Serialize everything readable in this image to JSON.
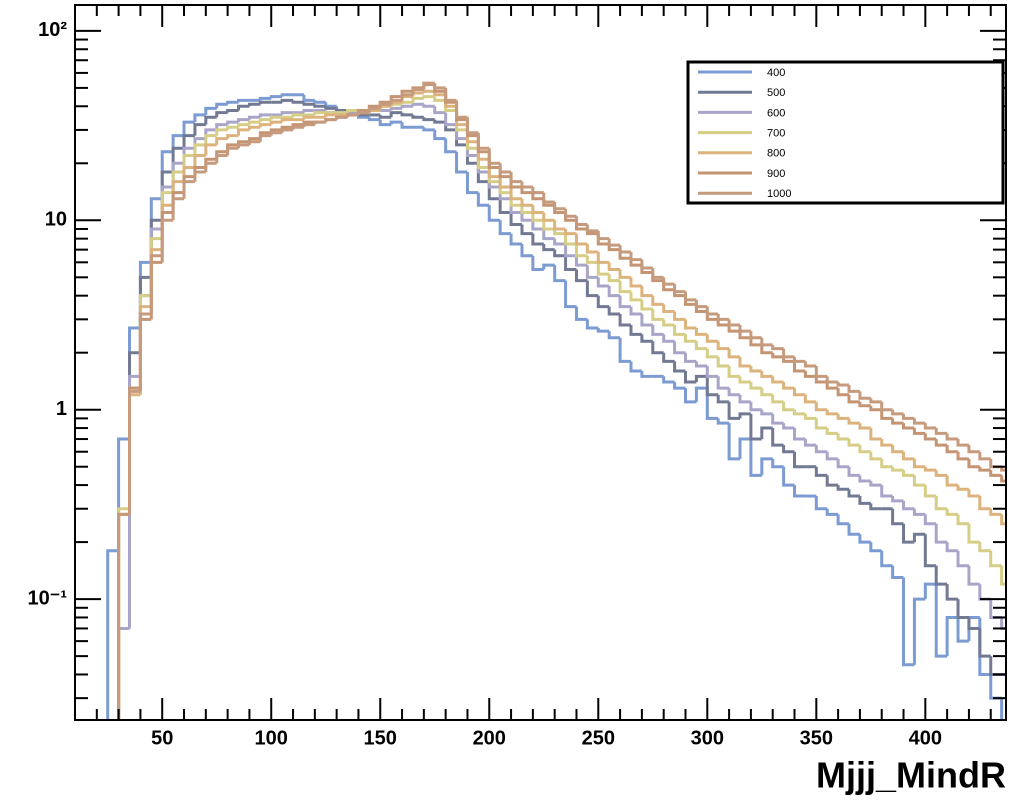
{
  "chart_data": {
    "type": "histogram",
    "log_y": true,
    "xlabel": "Mjjj_MindR",
    "bins": [
      10,
      15,
      20,
      25,
      30,
      35,
      40,
      45,
      50,
      55,
      60,
      65,
      70,
      75,
      80,
      85,
      90,
      95,
      100,
      105,
      110,
      115,
      120,
      125,
      130,
      135,
      140,
      145,
      150,
      155,
      160,
      165,
      170,
      175,
      180,
      185,
      190,
      195,
      200,
      205,
      210,
      215,
      220,
      225,
      230,
      235,
      240,
      245,
      250,
      255,
      260,
      265,
      270,
      275,
      280,
      285,
      290,
      295,
      300,
      305,
      310,
      315,
      320,
      325,
      330,
      335,
      340,
      345,
      350,
      355,
      360,
      365,
      370,
      375,
      380,
      385,
      390,
      395,
      400,
      405,
      410,
      415,
      420,
      425,
      430,
      435,
      440
    ],
    "xlim": [
      10,
      437
    ],
    "xticks": [
      50,
      100,
      150,
      200,
      250,
      300,
      350,
      400
    ],
    "xminorticks": [
      20,
      30,
      40,
      60,
      70,
      80,
      90,
      110,
      120,
      130,
      140,
      160,
      170,
      180,
      190,
      210,
      220,
      230,
      240,
      260,
      270,
      280,
      290,
      310,
      320,
      330,
      340,
      360,
      370,
      380,
      390,
      410,
      420,
      430
    ],
    "ylim": [
      0.023,
      137
    ],
    "yticks": [
      {
        "value": 0.1,
        "label": "10⁻¹"
      },
      1,
      10,
      {
        "value": 100,
        "label": "10²"
      }
    ],
    "yminorticks": [
      0.03,
      0.04,
      0.05,
      0.06,
      0.07,
      0.08,
      0.09,
      0.2,
      0.3,
      0.4,
      0.5,
      0.6,
      0.7,
      0.8,
      0.9,
      2,
      3,
      4,
      5,
      6,
      7,
      8,
      9,
      20,
      30,
      40,
      50,
      60,
      70,
      80,
      90
    ],
    "legend": "top-right",
    "series": [
      {
        "name": "400",
        "color": "#7b9bd2",
        "values": [
          0,
          0,
          0,
          0.18,
          0.7,
          2.7,
          6,
          13,
          23,
          28,
          33,
          36,
          39,
          41,
          42,
          43,
          43,
          44,
          45,
          46,
          46,
          43,
          42,
          40,
          38,
          36,
          35,
          34,
          32,
          33,
          31,
          31,
          30,
          27,
          23,
          18,
          14,
          12,
          10,
          8.5,
          7.5,
          6.5,
          5.5,
          5.8,
          4.8,
          3.5,
          3.0,
          2.7,
          2.6,
          2.4,
          1.8,
          1.6,
          1.5,
          1.5,
          1.4,
          1.3,
          1.1,
          1.3,
          0.9,
          0.85,
          0.55,
          0.7,
          0.45,
          0.55,
          0.5,
          0.4,
          0.35,
          0.35,
          0.3,
          0.28,
          0.25,
          0.22,
          0.2,
          0.18,
          0.15,
          0.13,
          0.045,
          0.1,
          0.12,
          0.05,
          0.08,
          0.06,
          0.08,
          0.04,
          0.03,
          0.02
        ]
      },
      {
        "name": "500",
        "color": "#727a93",
        "values": [
          0,
          0,
          0,
          0,
          0.07,
          2.0,
          5,
          10,
          18,
          24,
          28,
          32,
          35,
          37,
          38,
          40,
          41,
          42,
          42,
          43,
          42,
          41,
          40,
          39,
          38,
          37,
          36,
          36,
          35,
          37,
          36,
          35,
          34,
          33,
          30,
          25,
          20,
          16,
          13,
          11,
          9.5,
          8.5,
          7.5,
          7,
          6.5,
          5.5,
          4.8,
          4,
          3.5,
          3.2,
          2.8,
          2.5,
          2.3,
          2.0,
          1.8,
          1.6,
          1.4,
          1.5,
          1.2,
          1.1,
          0.9,
          0.95,
          0.7,
          0.8,
          0.65,
          0.6,
          0.5,
          0.5,
          0.45,
          0.4,
          0.38,
          0.35,
          0.32,
          0.3,
          0.3,
          0.25,
          0.2,
          0.22,
          0.15,
          0.12,
          0.1,
          0.08,
          0.07,
          0.05,
          0.04,
          0.04
        ]
      },
      {
        "name": "600",
        "color": "#a9a5c9",
        "values": [
          0,
          0,
          0,
          0,
          0.07,
          1.5,
          4,
          9,
          15,
          20,
          24,
          27,
          30,
          32,
          33,
          34,
          35,
          36,
          36,
          37,
          37,
          38,
          38,
          37,
          37,
          37,
          37,
          38,
          38,
          39,
          40,
          41,
          40,
          37,
          32,
          27,
          22,
          18,
          15,
          13,
          11,
          10,
          9,
          8,
          7.5,
          6.5,
          5.8,
          5,
          4.5,
          4,
          3.5,
          3.2,
          2.8,
          2.5,
          2.3,
          2.0,
          1.8,
          1.7,
          1.5,
          1.3,
          1.2,
          1.1,
          1.0,
          0.95,
          0.85,
          0.8,
          0.7,
          0.65,
          0.6,
          0.55,
          0.5,
          0.45,
          0.42,
          0.4,
          0.35,
          0.33,
          0.3,
          0.28,
          0.25,
          0.2,
          0.18,
          0.15,
          0.12,
          0.1,
          0.08,
          0.07
        ]
      },
      {
        "name": "700",
        "color": "#d6cd86",
        "values": [
          0,
          0,
          0,
          0,
          0.3,
          1.3,
          4,
          8,
          14,
          18,
          22,
          25,
          28,
          30,
          31,
          32,
          33,
          34,
          35,
          35,
          36,
          36,
          37,
          37,
          37,
          38,
          38,
          39,
          40,
          41,
          42,
          44,
          45,
          43,
          38,
          30,
          24,
          19,
          16,
          14,
          12,
          11,
          10,
          9,
          8.5,
          7.5,
          6.5,
          6,
          5.2,
          4.8,
          4.2,
          3.8,
          3.4,
          3,
          2.8,
          2.5,
          2.3,
          2.1,
          1.9,
          1.7,
          1.5,
          1.4,
          1.3,
          1.2,
          1.1,
          1.0,
          0.95,
          0.9,
          0.8,
          0.75,
          0.7,
          0.65,
          0.6,
          0.55,
          0.5,
          0.48,
          0.45,
          0.4,
          0.35,
          0.3,
          0.28,
          0.25,
          0.2,
          0.18,
          0.15,
          0.12
        ]
      },
      {
        "name": "800",
        "color": "#ddb37d",
        "values": [
          0,
          0,
          0,
          0,
          0.28,
          1.2,
          3.5,
          7,
          12,
          16,
          19,
          22,
          25,
          27,
          28,
          30,
          31,
          32,
          33,
          34,
          34,
          35,
          35,
          36,
          36,
          36,
          37,
          38,
          40,
          42,
          45,
          47,
          48,
          46,
          40,
          32,
          26,
          21,
          17,
          15,
          13,
          12,
          11,
          10,
          9,
          8.5,
          7.5,
          6.8,
          6,
          5.5,
          5,
          4.5,
          4,
          3.6,
          3.3,
          3,
          2.7,
          2.5,
          2.3,
          2.1,
          1.9,
          1.7,
          1.6,
          1.5,
          1.4,
          1.3,
          1.2,
          1.1,
          1.0,
          0.95,
          0.9,
          0.85,
          0.8,
          0.7,
          0.65,
          0.6,
          0.55,
          0.5,
          0.48,
          0.45,
          0.4,
          0.38,
          0.35,
          0.3,
          0.28,
          0.25
        ]
      },
      {
        "name": "900",
        "color": "#c49473",
        "values": [
          0,
          0,
          0,
          0,
          0.28,
          1.3,
          3.0,
          6,
          11,
          14,
          17,
          19,
          21,
          23,
          25,
          26,
          27,
          29,
          30,
          31,
          32,
          33,
          33,
          34,
          35,
          36,
          38,
          40,
          42,
          45,
          48,
          50,
          52,
          48,
          42,
          34,
          28,
          23,
          19,
          17,
          15,
          14,
          13,
          12,
          11,
          10,
          9,
          8.5,
          7.5,
          7,
          6.3,
          5.8,
          5.3,
          4.8,
          4.3,
          4,
          3.6,
          3.3,
          3,
          2.8,
          2.6,
          2.4,
          2.2,
          2.0,
          1.9,
          1.8,
          1.6,
          1.5,
          1.4,
          1.3,
          1.2,
          1.1,
          1.05,
          1.0,
          0.9,
          0.85,
          0.8,
          0.75,
          0.7,
          0.65,
          0.6,
          0.55,
          0.5,
          0.48,
          0.45,
          0.42
        ]
      },
      {
        "name": "1000",
        "color": "#c69a7c",
        "values": [
          0,
          0,
          0,
          0,
          0.28,
          1.25,
          3.2,
          6.5,
          10,
          13,
          16,
          18,
          20,
          22,
          24,
          25,
          26,
          28,
          29,
          30,
          31,
          32,
          33,
          34,
          35,
          36,
          37,
          39,
          41,
          43,
          46,
          49,
          53,
          50,
          43,
          35,
          29,
          24,
          20,
          18,
          16,
          15,
          14,
          12.5,
          11.5,
          10.5,
          9.5,
          8.8,
          8,
          7.4,
          6.8,
          6.2,
          5.6,
          5,
          4.6,
          4.2,
          3.8,
          3.5,
          3.2,
          3,
          2.8,
          2.6,
          2.4,
          2.2,
          2.1,
          1.9,
          1.8,
          1.7,
          1.5,
          1.4,
          1.35,
          1.25,
          1.15,
          1.1,
          1.0,
          0.95,
          0.9,
          0.85,
          0.8,
          0.75,
          0.7,
          0.65,
          0.6,
          0.55,
          0.5,
          0.48
        ]
      }
    ]
  }
}
